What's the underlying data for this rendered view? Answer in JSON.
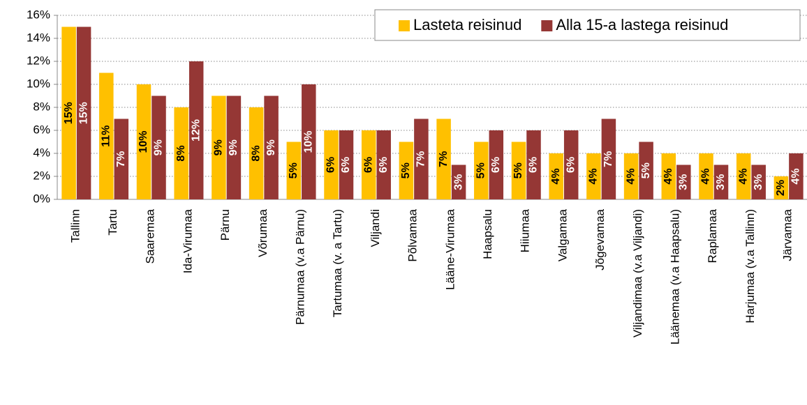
{
  "chart_data": {
    "type": "bar",
    "categories": [
      "Tallinn",
      "Tartu",
      "Saaremaa",
      "Ida-Virumaa",
      "Pärnu",
      "Võrumaa",
      "Pärnumaa (v.a Pärnu)",
      "Tartumaa (v. a Tartu)",
      "Viljandi",
      "Põlvamaa",
      "Lääne-Virumaa",
      "Haapsalu",
      "Hiiumaa",
      "Valgamaa",
      "Jõgevamaa",
      "Viljandimaa (v.a Viljandi)",
      "Läänemaa (v.a Haapsalu)",
      "Raplamaa",
      "Harjumaa (v.a Tallinn)",
      "Järvamaa"
    ],
    "series": [
      {
        "name": "Lasteta reisinud",
        "color": "#ffc000",
        "values": [
          15,
          11,
          10,
          8,
          9,
          8,
          5,
          6,
          6,
          5,
          7,
          5,
          5,
          4,
          4,
          4,
          4,
          4,
          4,
          2
        ],
        "value_labels": [
          "15%",
          "11%",
          "10%",
          "8%",
          "9%",
          "8%",
          "5%",
          "6%",
          "6%",
          "5%",
          "7%",
          "5%",
          "5%",
          "4%",
          "4%",
          "4%",
          "4%",
          "4%",
          "4%",
          "2%"
        ]
      },
      {
        "name": "Alla 15-a lastega reisinud",
        "color": "#953735",
        "values": [
          15,
          7,
          9,
          12,
          9,
          9,
          10,
          6,
          6,
          7,
          3,
          6,
          6,
          6,
          7,
          5,
          3,
          3,
          3,
          4
        ],
        "value_labels": [
          "15%",
          "7%",
          "9%",
          "12%",
          "9%",
          "9%",
          "10%",
          "6%",
          "6%",
          "7%",
          "3%",
          "6%",
          "6%",
          "6%",
          "7%",
          "5%",
          "3%",
          "3%",
          "3%",
          "4%"
        ]
      }
    ],
    "ylim": [
      0,
      16
    ],
    "yticks": [
      {
        "value": 0,
        "label": "0%"
      },
      {
        "value": 2,
        "label": "2%"
      },
      {
        "value": 4,
        "label": "4%"
      },
      {
        "value": 6,
        "label": "6%"
      },
      {
        "value": 8,
        "label": "8%"
      },
      {
        "value": 10,
        "label": "10%"
      },
      {
        "value": 12,
        "label": "12%"
      },
      {
        "value": 14,
        "label": "14%"
      },
      {
        "value": 16,
        "label": "16%"
      }
    ],
    "grid": true,
    "legend": "top-right"
  }
}
